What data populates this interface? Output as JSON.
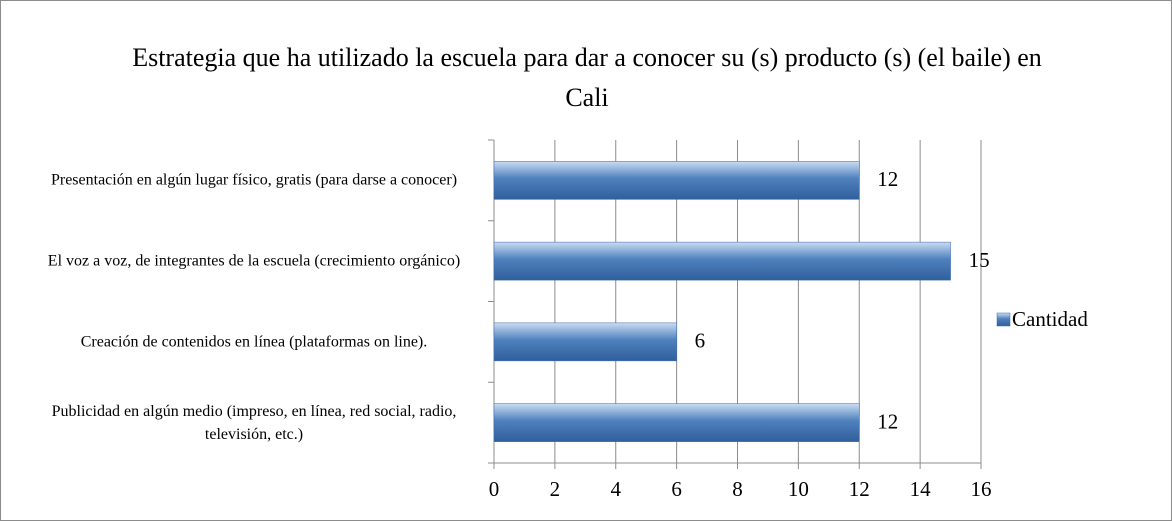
{
  "chart_data": {
    "type": "bar",
    "orientation": "horizontal",
    "title": "Estrategia que ha utilizado la escuela para dar a conocer su (s) producto (s) (el baile) en Cali",
    "categories": [
      "Presentación en algún lugar físico, gratis (para darse a conocer)",
      "El voz a voz, de integrantes de la escuela (crecimiento orgánico)",
      "Creación de contenidos en línea (plataformas on line).",
      "Publicidad en algún medio (impreso, en línea, red social, radio, televisión, etc.)"
    ],
    "series": [
      {
        "name": "Cantidad",
        "color": "#4f81bd",
        "values": [
          12,
          15,
          6,
          12
        ]
      }
    ],
    "xlim": [
      0,
      16
    ],
    "xticks": [
      0,
      2,
      4,
      6,
      8,
      10,
      12,
      14,
      16
    ],
    "grid": true,
    "legend": "right"
  }
}
